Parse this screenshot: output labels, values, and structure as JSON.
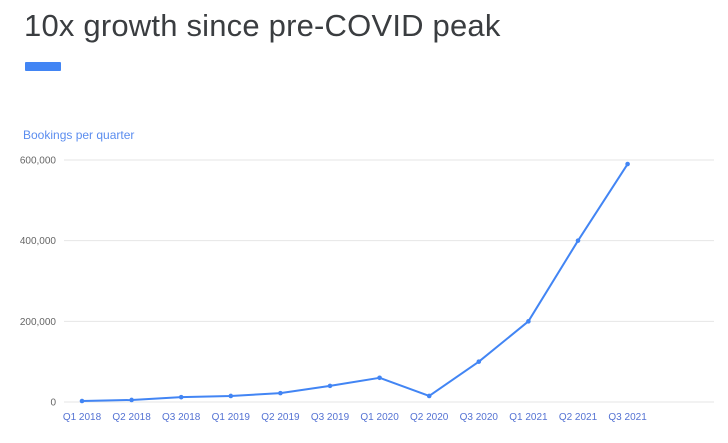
{
  "slide": {
    "title": "10x growth since pre-COVID peak"
  },
  "chart_data": {
    "type": "line",
    "title": "Bookings per quarter",
    "categories": [
      "Q1 2018",
      "Q2 2018",
      "Q3 2018",
      "Q1 2019",
      "Q2 2019",
      "Q3 2019",
      "Q1 2020",
      "Q2 2020",
      "Q3 2020",
      "Q1 2021",
      "Q2 2021",
      "Q3 2021"
    ],
    "series": [
      {
        "name": "Bookings per quarter",
        "values": [
          2500,
          5000,
          12000,
          15000,
          22000,
          40000,
          60000,
          15000,
          100000,
          200000,
          400000,
          590000
        ]
      }
    ],
    "xlabel": "",
    "ylabel": "",
    "ylim": [
      0,
      600000
    ],
    "yticks": [
      {
        "value": 0,
        "label": "0"
      },
      {
        "value": 200000,
        "label": "200,000"
      },
      {
        "value": 400000,
        "label": "400,000"
      },
      {
        "value": 600000,
        "label": "600,000"
      }
    ],
    "grid": true,
    "legend_position": "top-left",
    "colors": {
      "line": "#4285f4",
      "marker": "#4285f4",
      "legend_text": "#5b8def",
      "x_tick_text": "#5472d3",
      "y_tick_text": "#666666",
      "gridline": "#e6e6e6",
      "accent_bar": "#4285f4",
      "title_text": "#3a3d40"
    }
  }
}
